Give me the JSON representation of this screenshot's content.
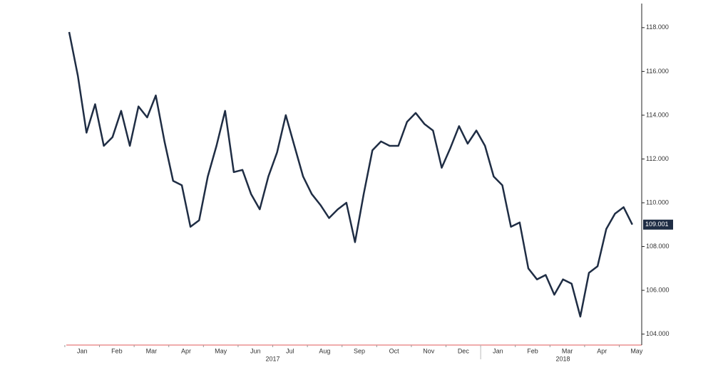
{
  "chart_data": {
    "type": "line",
    "categories": [
      null,
      null,
      "Jan",
      null,
      null,
      null,
      "Feb",
      null,
      null,
      null,
      "Mar",
      null,
      null,
      null,
      "Apr",
      null,
      null,
      null,
      "May",
      null,
      null,
      null,
      "Jun",
      null,
      null,
      null,
      "Jul",
      null,
      null,
      null,
      "Aug",
      null,
      null,
      null,
      "Sep",
      null,
      null,
      null,
      "Oct",
      null,
      null,
      null,
      "Nov",
      null,
      null,
      null,
      "Dec",
      null,
      null,
      null,
      "Jan",
      null,
      null,
      null,
      "Feb",
      null,
      null,
      null,
      "Mar",
      null,
      null,
      null,
      "Apr",
      null,
      null,
      null,
      "May"
    ],
    "year_labels": [
      "2017",
      "2018"
    ],
    "series": [
      {
        "color": "#1f2d44",
        "values": [
          117.8,
          115.8,
          113.2,
          114.5,
          112.6,
          113.0,
          114.2,
          112.6,
          114.4,
          113.9,
          114.9,
          112.8,
          111.0,
          110.8,
          108.9,
          109.2,
          111.2,
          112.6,
          114.2,
          111.4,
          111.5,
          110.4,
          109.7,
          111.2,
          112.3,
          114.0,
          112.6,
          111.2,
          110.4,
          109.9,
          109.3,
          109.7,
          110.0,
          108.2,
          110.4,
          112.4,
          112.8,
          112.6,
          112.6,
          113.7,
          114.1,
          113.6,
          113.3,
          111.6,
          112.5,
          113.5,
          112.7,
          113.3,
          112.6,
          111.2,
          110.8,
          108.9,
          109.1,
          107.0,
          106.5,
          106.7,
          105.8,
          106.5,
          106.3,
          104.8,
          106.8,
          107.1,
          108.8,
          109.5,
          109.8,
          109.001,
          null
        ]
      }
    ],
    "ylim": [
      103.5,
      119.1
    ],
    "yticks": [
      {
        "value": 104,
        "label": "104.000"
      },
      {
        "value": 106,
        "label": "106.000"
      },
      {
        "value": 108,
        "label": "108.000"
      },
      {
        "value": 110,
        "label": "110.000"
      },
      {
        "value": 112,
        "label": "112.000"
      },
      {
        "value": 114,
        "label": "114.000"
      },
      {
        "value": 116,
        "label": "116.000"
      },
      {
        "value": 118,
        "label": "118.000"
      }
    ],
    "grid": false
  }
}
